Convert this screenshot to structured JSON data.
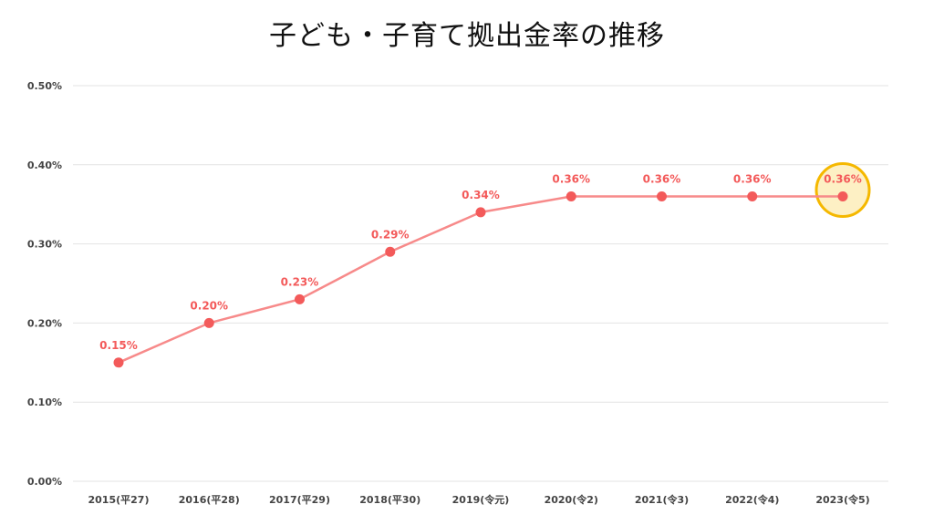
{
  "chart_data": {
    "type": "line",
    "title": "子ども・子育て拠出金率の推移",
    "xlabel": "",
    "ylabel": "",
    "categories": [
      "2015(平27)",
      "2016(平28)",
      "2017(平29)",
      "2018(平30)",
      "2019(令元)",
      "2020(令2)",
      "2021(令3)",
      "2022(令4)",
      "2023(令5)"
    ],
    "series": [
      {
        "values": [
          0.15,
          0.2,
          0.23,
          0.29,
          0.34,
          0.36,
          0.36,
          0.36,
          0.36
        ],
        "data_labels": [
          "0.15%",
          "0.20%",
          "0.23%",
          "0.29%",
          "0.34%",
          "0.36%",
          "0.36%",
          "0.36%",
          "0.36%"
        ]
      }
    ],
    "ylim": [
      0,
      0.5
    ],
    "yticks": [
      0.0,
      0.1,
      0.2,
      0.3,
      0.4,
      0.5
    ],
    "ytick_labels": [
      "0.00%",
      "0.10%",
      "0.20%",
      "0.30%",
      "0.40%",
      "0.50%"
    ],
    "grid": true,
    "highlight_index": 8,
    "colors": {
      "line": "#f78a8a",
      "marker": "#f35a5a",
      "label": "#f35a5a",
      "grid": "#e3e3e3",
      "highlight_stroke": "#f5b800",
      "highlight_fill": "#fdf0c4"
    }
  }
}
